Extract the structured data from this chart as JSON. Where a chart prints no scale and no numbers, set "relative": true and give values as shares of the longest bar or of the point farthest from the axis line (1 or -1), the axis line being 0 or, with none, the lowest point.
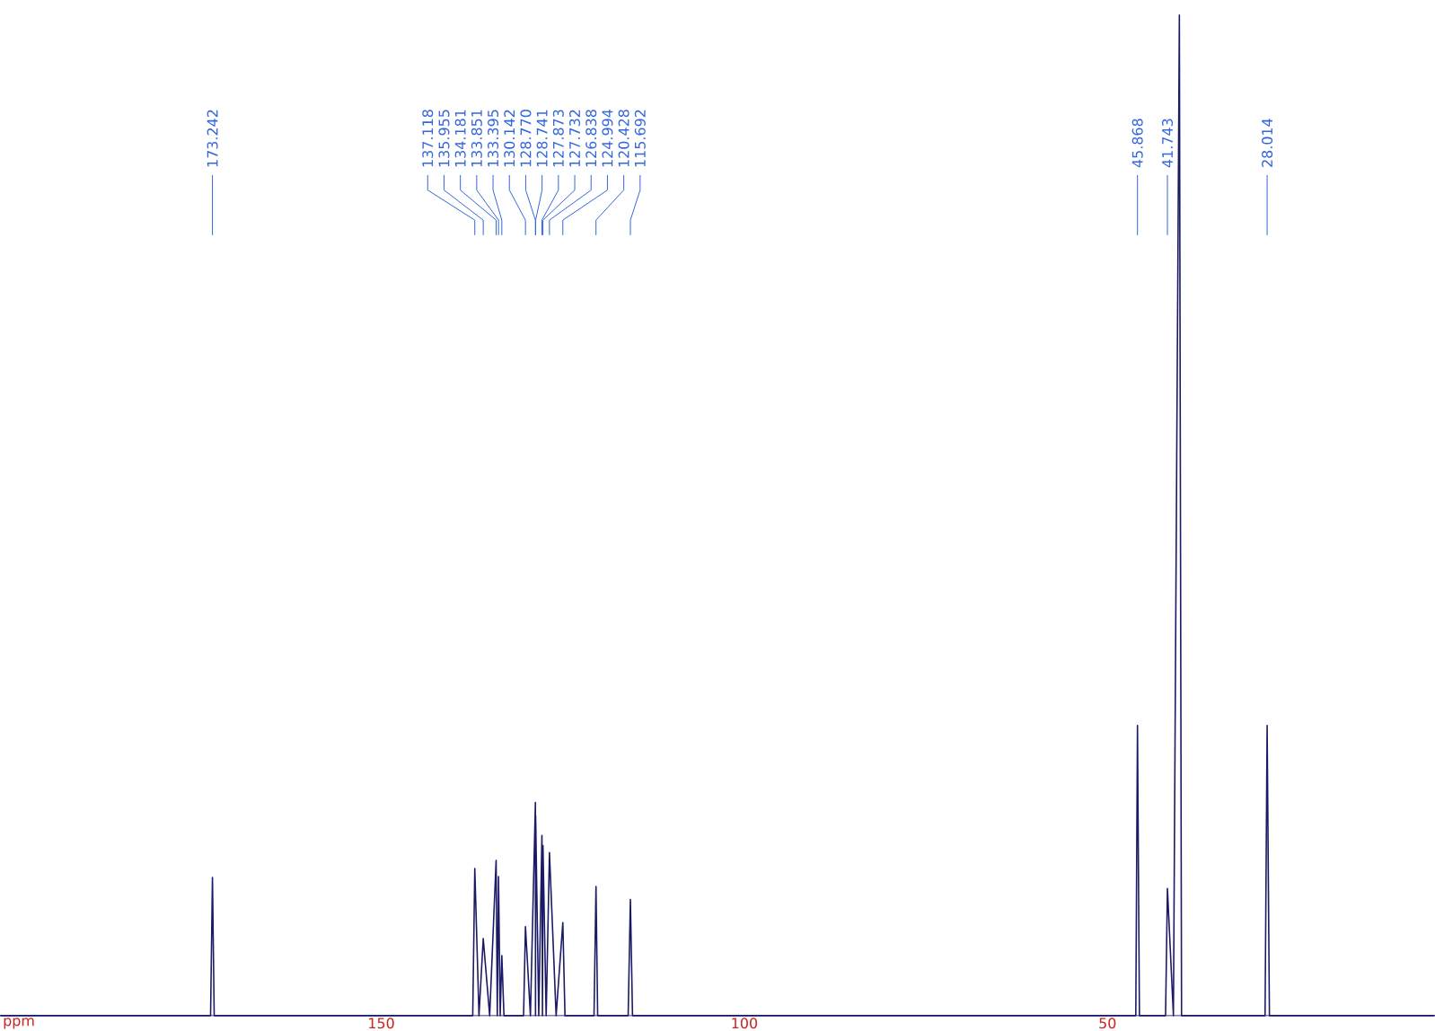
{
  "chart_data": {
    "type": "line",
    "relative": true,
    "tick_labels": "x",
    "xlim": [
      202.4,
      5.0
    ],
    "xticks": [
      150,
      100,
      50
    ],
    "xlabel": "ppm",
    "series": [
      {
        "color": "#1a1a66",
        "x": [
          202.4,
          173.5,
          173.242,
          173.0,
          137.4,
          137.118,
          136.54,
          135.955,
          135.07,
          134.181,
          134.02,
          133.851,
          133.62,
          133.395,
          133.1,
          130.4,
          130.142,
          129.46,
          128.77,
          128.756,
          128.741,
          128.31,
          127.873,
          127.8,
          127.732,
          127.29,
          126.838,
          125.92,
          124.994,
          124.7,
          120.7,
          120.428,
          120.2,
          116.0,
          115.692,
          115.4,
          46.1,
          45.868,
          45.6,
          42.0,
          41.743,
          40.92,
          40.1,
          39.8,
          28.3,
          28.014,
          27.7,
          5.0
        ],
        "values": [
          0,
          0,
          0.138,
          0,
          0,
          0.147,
          0,
          0.077,
          0,
          0.155,
          0,
          0.139,
          0,
          0.06,
          0,
          0,
          0.089,
          0,
          0.213,
          0,
          0.2,
          0,
          0.18,
          0,
          0.17,
          0,
          0.163,
          0,
          0.093,
          0,
          0,
          0.129,
          0,
          0,
          0.116,
          0,
          0,
          0.29,
          0,
          0,
          0.127,
          0,
          1,
          0,
          0,
          0.29,
          0,
          0
        ]
      }
    ],
    "annotations": [
      {
        "text": "173.242",
        "x": 173.242
      },
      {
        "text": "137.118",
        "x": 137.118
      },
      {
        "text": "135.955",
        "x": 135.955
      },
      {
        "text": "134.181",
        "x": 134.181
      },
      {
        "text": "133.851",
        "x": 133.851
      },
      {
        "text": "133.395",
        "x": 133.395
      },
      {
        "text": "130.142",
        "x": 130.142
      },
      {
        "text": "128.770",
        "x": 128.77
      },
      {
        "text": "128.741",
        "x": 128.741
      },
      {
        "text": "127.873",
        "x": 127.873
      },
      {
        "text": "127.732",
        "x": 127.732
      },
      {
        "text": "126.838",
        "x": 126.838
      },
      {
        "text": "124.994",
        "x": 124.994
      },
      {
        "text": "120.428",
        "x": 120.428
      },
      {
        "text": "115.692",
        "x": 115.692
      },
      {
        "text": "45.868",
        "x": 45.868
      },
      {
        "text": "41.743",
        "x": 41.743
      },
      {
        "text": "28.014",
        "x": 28.014
      }
    ]
  }
}
